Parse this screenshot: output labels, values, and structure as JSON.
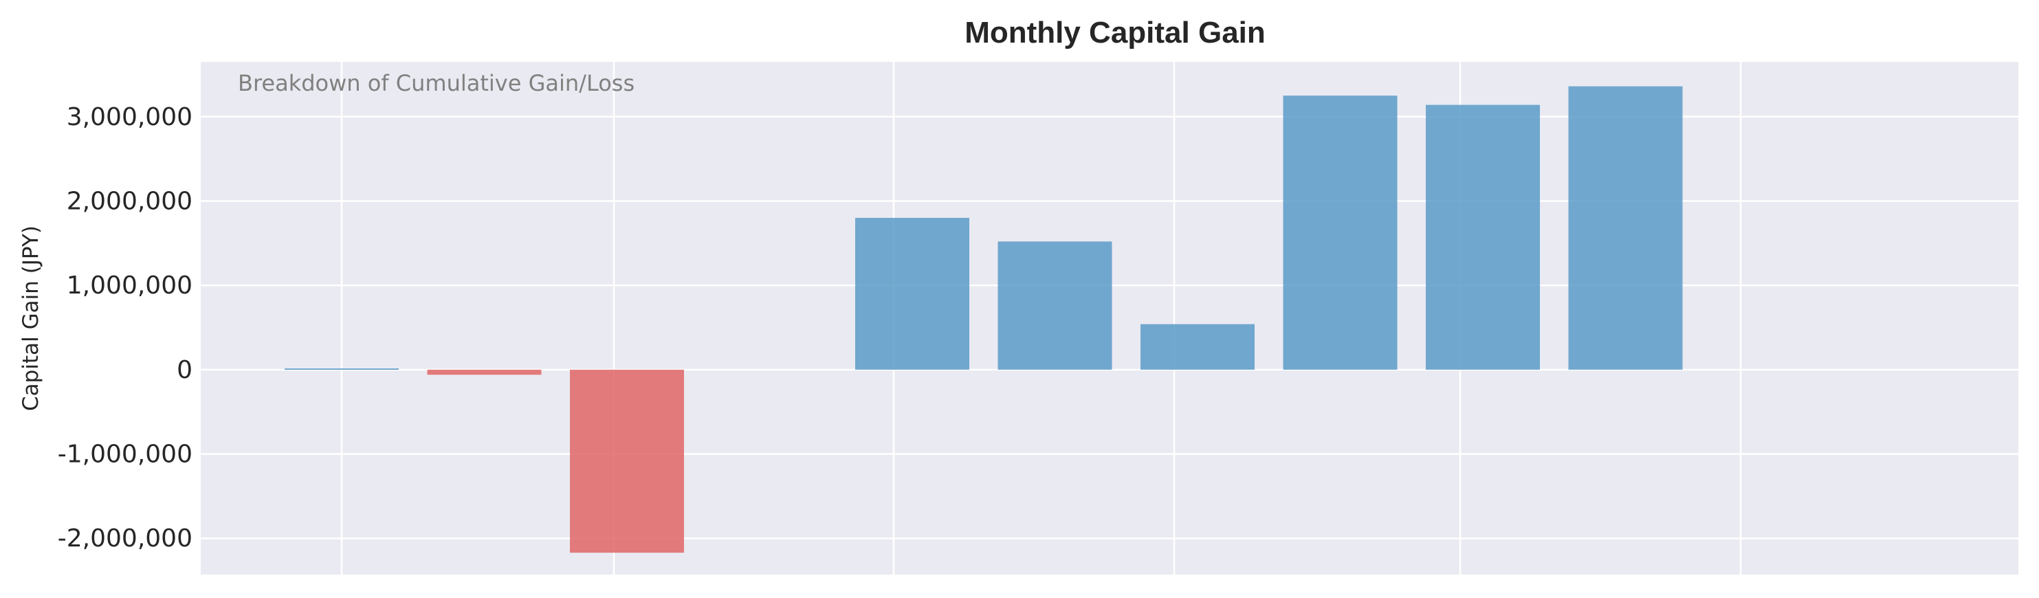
{
  "chart_data": {
    "type": "bar",
    "title": "Monthly Capital Gain",
    "ylabel": "Capital Gain (JPY)",
    "xlabel": "",
    "annotation": "Breakdown of Cumulative Gain/Loss",
    "ylim": [
      -2430000,
      3650000
    ],
    "yticks": [
      -2000000,
      -1000000,
      0,
      1000000,
      2000000,
      3000000
    ],
    "ytick_labels": [
      "-2,000,000",
      "-1,000,000",
      "0",
      "1,000,000",
      "2,000,000",
      "3,000,000"
    ],
    "grid": true,
    "values": [
      15000,
      -60000,
      -2170000,
      0,
      1800000,
      1520000,
      540000,
      3250000,
      3140000,
      3360000
    ],
    "colors": {
      "positive": "#5a9bc8",
      "negative": "#e06666",
      "plot_background": "#eaeaf2",
      "grid": "#ffffff"
    }
  }
}
